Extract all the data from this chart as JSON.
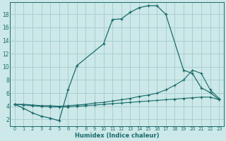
{
  "xlabel": "Humidex (Indice chaleur)",
  "background_color": "#cce8e8",
  "grid_color": "#aacfcf",
  "line_color": "#1a6b6b",
  "xlim": [
    -0.5,
    23.5
  ],
  "ylim": [
    1.0,
    19.8
  ],
  "yticks": [
    2,
    4,
    6,
    8,
    10,
    12,
    14,
    16,
    18
  ],
  "xticks": [
    0,
    1,
    2,
    3,
    4,
    5,
    6,
    7,
    8,
    9,
    10,
    11,
    12,
    13,
    14,
    15,
    16,
    17,
    18,
    19,
    20,
    21,
    22,
    23
  ],
  "curve1_x": [
    0,
    1,
    2,
    3,
    4,
    5,
    6,
    7,
    10,
    11,
    12,
    13,
    14,
    15,
    16,
    17,
    19,
    20,
    21,
    22,
    23
  ],
  "curve1_y": [
    4.3,
    3.7,
    3.0,
    2.5,
    2.2,
    1.8,
    6.5,
    10.2,
    13.5,
    17.2,
    17.3,
    18.3,
    19.0,
    19.3,
    19.3,
    18.0,
    9.5,
    9.0,
    6.8,
    6.1,
    5.0
  ],
  "curve2_x": [
    0,
    1,
    2,
    3,
    4,
    5,
    6,
    7,
    8,
    9,
    10,
    11,
    12,
    13,
    14,
    15,
    16,
    17,
    18,
    19,
    20,
    21,
    22,
    23
  ],
  "curve2_y": [
    4.3,
    4.3,
    4.2,
    4.1,
    4.1,
    4.0,
    4.1,
    4.2,
    4.3,
    4.5,
    4.6,
    4.8,
    5.0,
    5.2,
    5.5,
    5.7,
    6.0,
    6.5,
    7.2,
    8.0,
    9.5,
    9.0,
    6.5,
    5.2
  ],
  "curve3_x": [
    0,
    1,
    2,
    3,
    4,
    5,
    6,
    7,
    8,
    9,
    10,
    11,
    12,
    13,
    14,
    15,
    16,
    17,
    18,
    19,
    20,
    21,
    22,
    23
  ],
  "curve3_y": [
    4.3,
    4.2,
    4.1,
    4.0,
    3.9,
    3.9,
    3.9,
    4.0,
    4.1,
    4.2,
    4.3,
    4.4,
    4.5,
    4.6,
    4.7,
    4.8,
    4.9,
    5.0,
    5.1,
    5.2,
    5.3,
    5.4,
    5.4,
    5.0
  ]
}
